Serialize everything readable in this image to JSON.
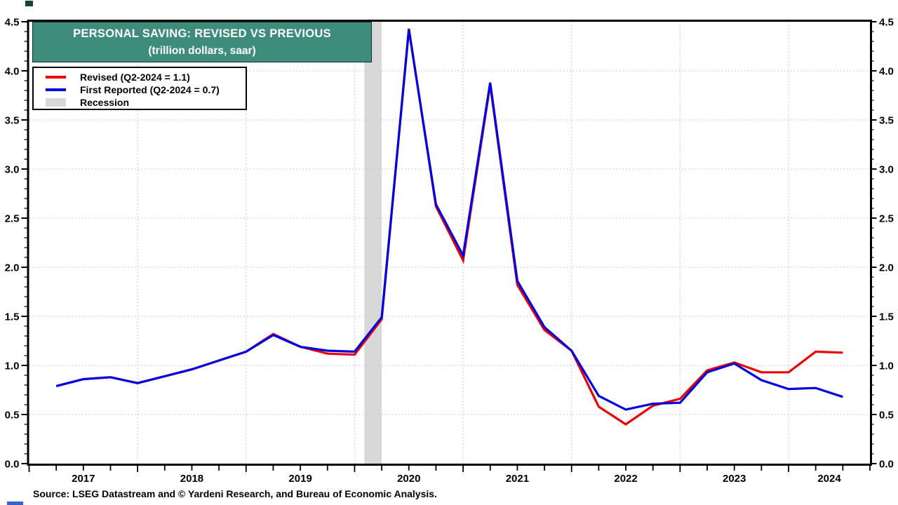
{
  "theme": {
    "title_bg": "#3E8C7C",
    "title_text": "#FFFFFF",
    "grid_color": "#C9C9C9",
    "axis_color": "#000000",
    "corner_mark_color": "#15403A",
    "bottom_mark_color": "#3A5FD0"
  },
  "chart_data": {
    "type": "line",
    "title": "PERSONAL SAVING: REVISED VS PREVIOUS",
    "subtitle": "(trillion dollars, saar)",
    "ylim": [
      0.0,
      4.5
    ],
    "y_tick_step": 0.5,
    "y_minor_tick_step": 0.1,
    "y_tick_labels": [
      "0.0",
      "0.5",
      "1.0",
      "1.5",
      "2.0",
      "2.5",
      "3.0",
      "3.5",
      "4.0",
      "4.5"
    ],
    "x_range_years": [
      2017.0,
      2024.75
    ],
    "x_minor_tick_step_years": 0.25,
    "year_labels": [
      "2017",
      "2018",
      "2019",
      "2020",
      "2021",
      "2022",
      "2023",
      "2024"
    ],
    "grid": "dotted, horizontal at each 0.5 and vertical at each year boundary",
    "legend_position": "top-left",
    "axis_labels_both_sides": true,
    "categories": [
      "Q1-2017",
      "Q2-2017",
      "Q3-2017",
      "Q4-2017",
      "Q1-2018",
      "Q2-2018",
      "Q3-2018",
      "Q4-2018",
      "Q1-2019",
      "Q2-2019",
      "Q3-2019",
      "Q4-2019",
      "Q1-2020",
      "Q2-2020",
      "Q3-2020",
      "Q4-2020",
      "Q1-2021",
      "Q2-2021",
      "Q3-2021",
      "Q4-2021",
      "Q1-2022",
      "Q2-2022",
      "Q3-2022",
      "Q4-2022",
      "Q1-2023",
      "Q2-2023",
      "Q3-2023",
      "Q4-2023",
      "Q1-2024",
      "Q2-2024"
    ],
    "series": [
      {
        "name": "Revised (Q2-2024 = 1.1)",
        "color": "#EE0000",
        "values": [
          0.79,
          0.86,
          0.88,
          0.82,
          0.89,
          0.96,
          1.05,
          1.14,
          1.32,
          1.19,
          1.12,
          1.11,
          1.47,
          4.43,
          2.62,
          2.07,
          3.86,
          1.82,
          1.36,
          1.15,
          0.58,
          0.4,
          0.59,
          0.66,
          0.95,
          1.03,
          0.93,
          0.93,
          1.14,
          1.13
        ]
      },
      {
        "name": "First Reported (Q2-2024 = 0.7)",
        "color": "#0000E0",
        "values": [
          0.79,
          0.86,
          0.88,
          0.82,
          0.89,
          0.96,
          1.05,
          1.14,
          1.31,
          1.19,
          1.15,
          1.14,
          1.49,
          4.42,
          2.64,
          2.12,
          3.88,
          1.86,
          1.39,
          1.15,
          0.69,
          0.55,
          0.61,
          0.62,
          0.93,
          1.02,
          0.85,
          0.76,
          0.77,
          0.68
        ]
      }
    ],
    "recession": {
      "label": "Recession",
      "color": "#D8D8D8",
      "start": 2020.09,
      "end": 2020.25
    },
    "source": "Source: LSEG Datastream and © Yardeni Research, and Bureau of Economic Analysis."
  }
}
